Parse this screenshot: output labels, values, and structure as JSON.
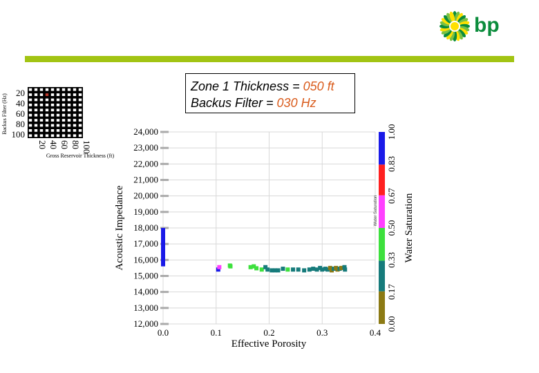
{
  "logo": {
    "text": "bp",
    "colors": {
      "green": "#0b8c3c",
      "yellow": "#ffe000"
    }
  },
  "header_bar_color": "#a2c413",
  "annotation": {
    "line1_prefix": "Zone 1 Thickness = ",
    "line1_value": "050 ft",
    "line2_prefix": "Backus Filter = ",
    "line2_value": "030 Hz"
  },
  "chart_data": [
    {
      "type": "heatmap",
      "title": "",
      "xlabel": "Gross Reservoir Thickness (ft)",
      "ylabel": "Backus Filter (Hz)",
      "x_ticks": [
        "20",
        "40",
        "60",
        "80",
        "100"
      ],
      "y_ticks": [
        "20",
        "40",
        "60",
        "80",
        "100"
      ],
      "grid_size": [
        10,
        10
      ],
      "selected_cell": {
        "col": 3,
        "row": 1,
        "x_value": 50,
        "y_value": 30
      },
      "cell_color": "#ffffff",
      "background_color": "#000000",
      "selected_color": "#c0392b"
    },
    {
      "type": "scatter",
      "xlabel": "Effective Porosity",
      "ylabel": "Acoustic Impedance",
      "xlim": [
        0.0,
        0.4
      ],
      "ylim": [
        12000,
        24000
      ],
      "x_ticks": [
        "0.0",
        "0.1",
        "0.2",
        "0.3",
        "0.4"
      ],
      "y_ticks": [
        "12,000",
        "13,000",
        "14,000",
        "15,000",
        "16,000",
        "17,000",
        "18,000",
        "19,000",
        "20,000",
        "21,000",
        "22,000",
        "23,000",
        "24,000"
      ],
      "color_by": "Water Saturation",
      "colorbar": {
        "label": "Water Saturation",
        "inner_label": "Water Saturation",
        "ticks": [
          "0.00",
          "0.17",
          "0.33",
          "0.50",
          "0.67",
          "0.83",
          "1.00"
        ],
        "bands": [
          {
            "from": 0.0,
            "to": 0.17,
            "color": "#8c7a14"
          },
          {
            "from": 0.17,
            "to": 0.33,
            "color": "#167b7b"
          },
          {
            "from": 0.33,
            "to": 0.5,
            "color": "#3de03d"
          },
          {
            "from": 0.5,
            "to": 0.67,
            "color": "#ff40ff"
          },
          {
            "from": 0.67,
            "to": 0.83,
            "color": "#ff2020"
          },
          {
            "from": 0.83,
            "to": 1.0,
            "color": "#1a1ae8"
          }
        ]
      },
      "wet_bar": {
        "x": 0.0,
        "y_from": 15600,
        "y_to": 18000,
        "color": "#1a1ae8"
      },
      "points": [
        {
          "x": 0.104,
          "y": 15400,
          "sw": 0.9
        },
        {
          "x": 0.106,
          "y": 15550,
          "sw": 0.6
        },
        {
          "x": 0.126,
          "y": 15650,
          "sw": 0.45
        },
        {
          "x": 0.127,
          "y": 15600,
          "sw": 0.45
        },
        {
          "x": 0.165,
          "y": 15550,
          "sw": 0.45
        },
        {
          "x": 0.171,
          "y": 15600,
          "sw": 0.4
        },
        {
          "x": 0.176,
          "y": 15480,
          "sw": 0.35
        },
        {
          "x": 0.186,
          "y": 15400,
          "sw": 0.4
        },
        {
          "x": 0.193,
          "y": 15550,
          "sw": 0.25
        },
        {
          "x": 0.197,
          "y": 15400,
          "sw": 0.25
        },
        {
          "x": 0.205,
          "y": 15350,
          "sw": 0.22
        },
        {
          "x": 0.211,
          "y": 15350,
          "sw": 0.22
        },
        {
          "x": 0.217,
          "y": 15350,
          "sw": 0.22
        },
        {
          "x": 0.226,
          "y": 15450,
          "sw": 0.25
        },
        {
          "x": 0.235,
          "y": 15400,
          "sw": 0.4
        },
        {
          "x": 0.245,
          "y": 15400,
          "sw": 0.22
        },
        {
          "x": 0.255,
          "y": 15400,
          "sw": 0.22
        },
        {
          "x": 0.266,
          "y": 15350,
          "sw": 0.22
        },
        {
          "x": 0.276,
          "y": 15400,
          "sw": 0.22
        },
        {
          "x": 0.283,
          "y": 15450,
          "sw": 0.22
        },
        {
          "x": 0.29,
          "y": 15400,
          "sw": 0.22
        },
        {
          "x": 0.296,
          "y": 15500,
          "sw": 0.22
        },
        {
          "x": 0.3,
          "y": 15400,
          "sw": 0.22
        },
        {
          "x": 0.306,
          "y": 15450,
          "sw": 0.22
        },
        {
          "x": 0.31,
          "y": 15400,
          "sw": 0.22
        },
        {
          "x": 0.315,
          "y": 15500,
          "sw": 0.1
        },
        {
          "x": 0.318,
          "y": 15350,
          "sw": 0.1
        },
        {
          "x": 0.322,
          "y": 15450,
          "sw": 0.22
        },
        {
          "x": 0.326,
          "y": 15500,
          "sw": 0.1
        },
        {
          "x": 0.329,
          "y": 15400,
          "sw": 0.1
        },
        {
          "x": 0.333,
          "y": 15450,
          "sw": 0.22
        },
        {
          "x": 0.336,
          "y": 15500,
          "sw": 0.1
        },
        {
          "x": 0.342,
          "y": 15550,
          "sw": 0.22
        },
        {
          "x": 0.343,
          "y": 15400,
          "sw": 0.22
        }
      ]
    }
  ]
}
